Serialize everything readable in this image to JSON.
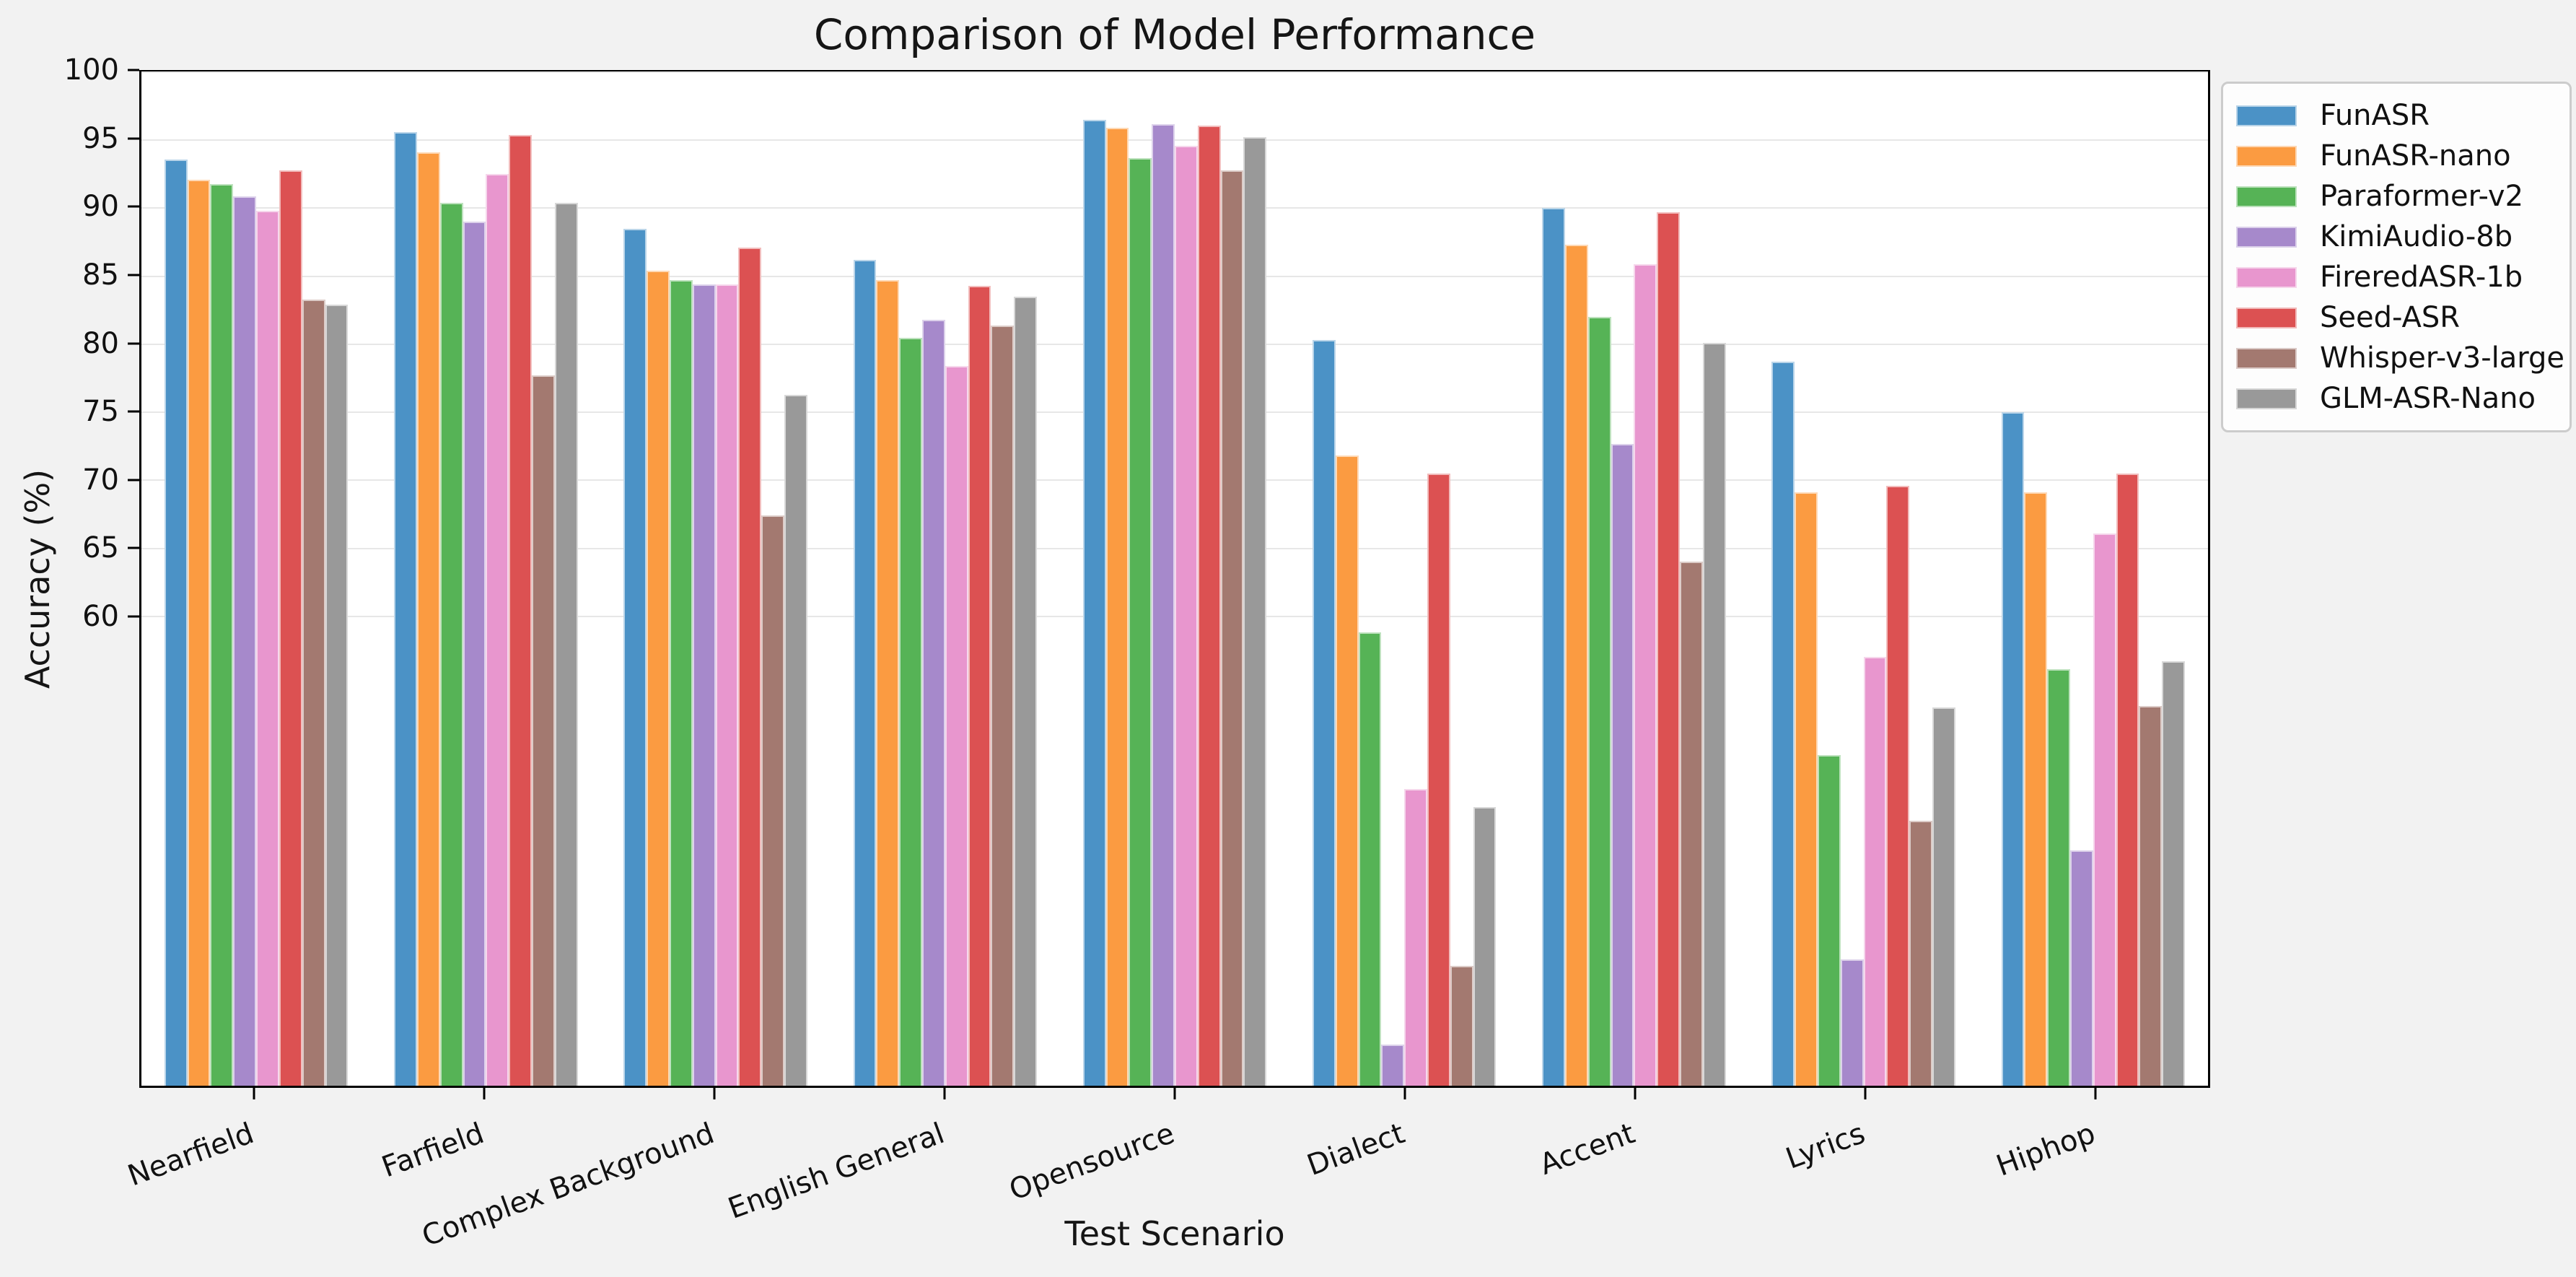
{
  "title": "Comparison of Model Performance",
  "axes": {
    "x_label": "Test Scenario",
    "y_label": "Accuracy (%)"
  },
  "colors": {
    "figure_bg": "#f2f2f2",
    "plot_bg": "#ffffff",
    "grid": "#e7e7e7",
    "spine": "#000000"
  },
  "chart_data": {
    "type": "bar",
    "title": "Comparison of Model Performance",
    "xlabel": "Test Scenario",
    "ylabel": "Accuracy (%)",
    "grid": "horizontal",
    "legend_position": "outside-upper-right",
    "ylim": [
      25.5,
      100
    ],
    "yticks": [
      60,
      65,
      70,
      75,
      80,
      85,
      90,
      95,
      100
    ],
    "categories": [
      "Nearfield",
      "Farfield",
      "Complex Background",
      "English General",
      "Opensource",
      "Dialect",
      "Accent",
      "Lyrics",
      "Hiphop"
    ],
    "series": [
      {
        "name": "FunASR",
        "color": "#4B92C6",
        "values": [
          93.6,
          95.6,
          88.5,
          86.2,
          96.5,
          80.3,
          90.0,
          78.7,
          75.0
        ]
      },
      {
        "name": "FunASR-nano",
        "color": "#FB9B41",
        "values": [
          92.1,
          94.1,
          85.4,
          84.7,
          95.9,
          71.8,
          87.3,
          69.1,
          69.1
        ]
      },
      {
        "name": "Paraformer-v2",
        "color": "#56B356",
        "values": [
          91.8,
          90.4,
          84.7,
          80.5,
          93.7,
          58.8,
          82.0,
          49.8,
          56.1
        ]
      },
      {
        "name": "KimiAudio-8b",
        "color": "#A689CB",
        "values": [
          90.9,
          89.0,
          84.4,
          81.8,
          96.2,
          28.5,
          72.7,
          34.8,
          42.8
        ]
      },
      {
        "name": "FireredASR-1b",
        "color": "#E896CE",
        "values": [
          89.8,
          92.5,
          84.4,
          78.4,
          94.6,
          47.3,
          85.9,
          57.0,
          66.1
        ]
      },
      {
        "name": "Seed-ASR",
        "color": "#DC5152",
        "values": [
          92.8,
          95.4,
          87.1,
          84.3,
          96.1,
          70.5,
          89.7,
          69.6,
          70.5
        ]
      },
      {
        "name": "Whisper-v3-large",
        "color": "#A37970",
        "values": [
          83.3,
          77.7,
          67.4,
          81.4,
          92.8,
          34.3,
          64.0,
          45.0,
          53.4
        ]
      },
      {
        "name": "GLM-ASR-Nano",
        "color": "#999999",
        "values": [
          82.9,
          90.4,
          76.3,
          83.5,
          95.2,
          46.0,
          80.1,
          53.3,
          56.7
        ]
      }
    ]
  }
}
